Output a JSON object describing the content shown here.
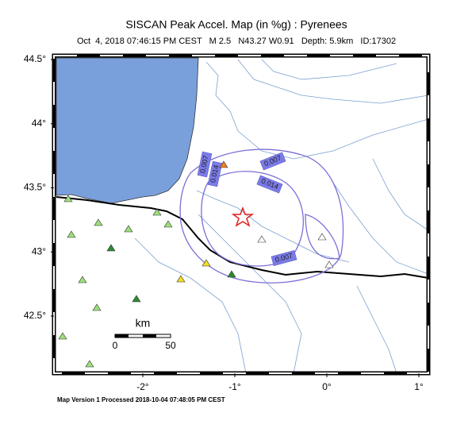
{
  "header": {
    "title": "SISCAN Peak Accel. Map (in %g) : Pyrenees",
    "subtitle": "Oct  4, 2018 07:46:15 PM CEST   M 2.5   N43.27 W0.91   Depth: 5.9km   ID:17302"
  },
  "map": {
    "lat_ticks": [
      {
        "value": 44.5,
        "label": "44.5°"
      },
      {
        "value": 44,
        "label": "44°"
      },
      {
        "value": 43.5,
        "label": "43.5°"
      },
      {
        "value": 43,
        "label": "43°"
      },
      {
        "value": 42.5,
        "label": "42.5°"
      }
    ],
    "lon_ticks": [
      {
        "value": -2,
        "label": "-2°"
      },
      {
        "value": -1,
        "label": "-1°"
      },
      {
        "value": 0,
        "label": "0°"
      },
      {
        "value": 1,
        "label": "1°"
      }
    ],
    "contour_labels": [
      "0.007",
      "0.014",
      "0.007",
      "0.014",
      "0.007"
    ],
    "scale_bar": {
      "unit": "km",
      "start": "0",
      "end": "50"
    }
  },
  "footer": "Map Version 1 Processed 2018-10-04 07:48:05 PM CEST"
}
